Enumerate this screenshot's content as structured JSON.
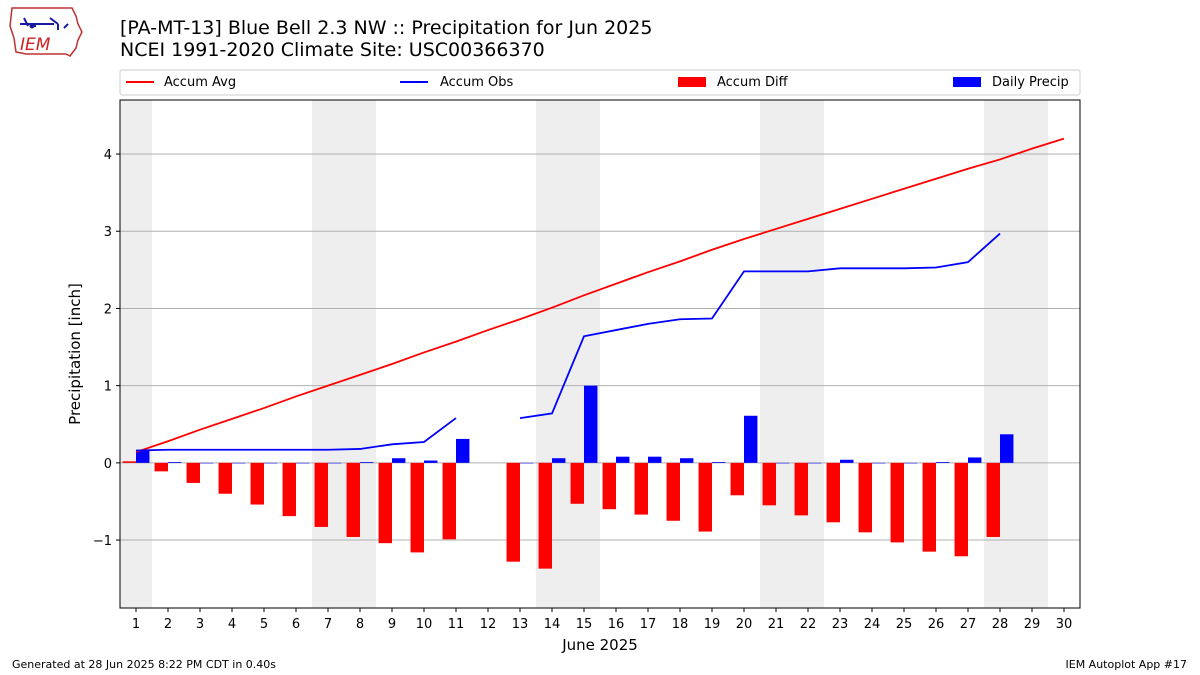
{
  "header": {
    "title_line1": "[PA-MT-13] Blue Bell 2.3 NW :: Precipitation for Jun 2025",
    "title_line2": "NCEI 1991-2020 Climate Site: USC00366370"
  },
  "logo": {
    "text": "IEM"
  },
  "footer": {
    "generated": "Generated at 28 Jun 2025 8:22 PM CDT in 0.40s",
    "app": "IEM Autoplot App #17"
  },
  "colors": {
    "avg": "#ff0000",
    "obs": "#0000ff",
    "diff": "#ff0000",
    "daily": "#0000ff",
    "weekend_band": "#eeeeee",
    "grid": "#b0b0b0"
  },
  "chart_data": {
    "type": "bar",
    "xlabel": "June 2025",
    "ylabel": "Precipitation [inch]",
    "xlim": [
      0.5,
      30.5
    ],
    "ylim": [
      -1.88,
      4.7
    ],
    "yticks": [
      -1,
      0,
      1,
      2,
      3,
      4
    ],
    "ytick_labels": [
      "−1",
      "0",
      "1",
      "2",
      "3",
      "4"
    ],
    "grid": "horizontal",
    "legend_placement": "top",
    "days": [
      1,
      2,
      3,
      4,
      5,
      6,
      7,
      8,
      9,
      10,
      11,
      12,
      13,
      14,
      15,
      16,
      17,
      18,
      19,
      20,
      21,
      22,
      23,
      24,
      25,
      26,
      27,
      28,
      29,
      30
    ],
    "weekend_days": [
      1,
      7,
      8,
      14,
      15,
      21,
      22,
      28,
      29
    ],
    "legend": [
      {
        "label": "Accum Avg",
        "kind": "line",
        "color": "#ff0000"
      },
      {
        "label": "Accum Obs",
        "kind": "line",
        "color": "#0000ff"
      },
      {
        "label": "Accum Diff",
        "kind": "bar",
        "color": "#ff0000"
      },
      {
        "label": "Daily Precip",
        "kind": "bar",
        "color": "#0000ff"
      }
    ],
    "series": [
      {
        "name": "Accum Avg",
        "type": "line",
        "values": [
          0.14,
          0.28,
          0.43,
          0.57,
          0.71,
          0.86,
          1.0,
          1.14,
          1.28,
          1.43,
          1.57,
          1.72,
          1.86,
          2.01,
          2.17,
          2.32,
          2.47,
          2.61,
          2.76,
          2.9,
          3.03,
          3.16,
          3.29,
          3.42,
          3.55,
          3.68,
          3.81,
          3.93,
          4.07,
          4.2
        ]
      },
      {
        "name": "Accum Obs",
        "type": "line",
        "values": [
          0.16,
          0.17,
          0.17,
          0.17,
          0.17,
          0.17,
          0.17,
          0.18,
          0.24,
          0.27,
          0.58,
          null,
          0.58,
          0.64,
          1.64,
          1.72,
          1.8,
          1.86,
          1.87,
          2.48,
          2.48,
          2.48,
          2.52,
          2.52,
          2.52,
          2.53,
          2.6,
          2.97,
          null,
          null
        ]
      },
      {
        "name": "Accum Diff",
        "type": "bar",
        "values": [
          0.02,
          -0.11,
          -0.26,
          -0.4,
          -0.54,
          -0.69,
          -0.83,
          -0.96,
          -1.04,
          -1.16,
          -0.99,
          null,
          -1.28,
          -1.37,
          -0.53,
          -0.6,
          -0.67,
          -0.75,
          -0.89,
          -0.42,
          -0.55,
          -0.68,
          -0.77,
          -0.9,
          -1.03,
          -1.15,
          -1.21,
          -0.96,
          null,
          null
        ]
      },
      {
        "name": "Daily Precip",
        "type": "bar",
        "values": [
          0.16,
          0.01,
          0.0,
          0.0,
          0.0,
          0.0,
          0.0,
          0.01,
          0.06,
          0.03,
          0.31,
          null,
          0.0,
          0.06,
          1.0,
          0.08,
          0.08,
          0.06,
          0.01,
          0.61,
          0.0,
          0.0,
          0.04,
          0.0,
          0.0,
          0.01,
          0.07,
          0.37,
          null,
          null
        ]
      }
    ]
  }
}
